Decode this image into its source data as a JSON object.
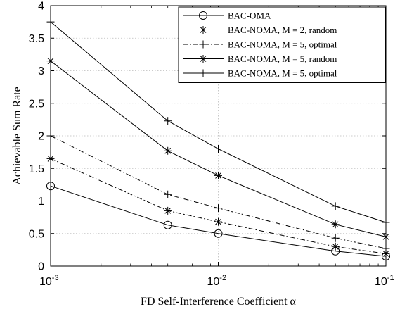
{
  "chart_data": {
    "type": "line",
    "xscale": "log",
    "xlabel": "FD Self-Interference Coefficient α",
    "ylabel": "Achievable Sum Rate",
    "xlim": [
      0.001,
      0.1
    ],
    "ylim": [
      0,
      4
    ],
    "xticks": [
      {
        "value": 0.001,
        "base": "10",
        "exp": "-3"
      },
      {
        "value": 0.01,
        "base": "10",
        "exp": "-2"
      },
      {
        "value": 0.1,
        "base": "10",
        "exp": "-1"
      }
    ],
    "yticks": [
      "0",
      "0.5",
      "1",
      "1.5",
      "2",
      "2.5",
      "3",
      "3.5",
      "4"
    ],
    "grid": true,
    "legend_position": "top-right",
    "x": [
      0.001,
      0.005,
      0.01,
      0.05,
      0.1
    ],
    "series": [
      {
        "name": "BAC-OMA",
        "marker": "circle",
        "dash": "solid",
        "values": [
          1.23,
          0.63,
          0.5,
          0.23,
          0.15
        ]
      },
      {
        "name": "BAC-NOMA, M = 2, random",
        "marker": "star",
        "dash": "dashdot",
        "values": [
          1.65,
          0.85,
          0.68,
          0.3,
          0.19
        ]
      },
      {
        "name": "BAC-NOMA, M = 5, optimal",
        "marker": "plus",
        "dash": "dashdot",
        "values": [
          2.0,
          1.1,
          0.89,
          0.43,
          0.27
        ]
      },
      {
        "name": "BAC-NOMA, M = 5, random",
        "marker": "star",
        "dash": "solid",
        "values": [
          3.15,
          1.77,
          1.39,
          0.64,
          0.45
        ]
      },
      {
        "name": "BAC-NOMA, M = 5, optimal",
        "marker": "plus",
        "dash": "solid",
        "values": [
          3.75,
          2.23,
          1.8,
          0.92,
          0.67
        ]
      }
    ]
  }
}
